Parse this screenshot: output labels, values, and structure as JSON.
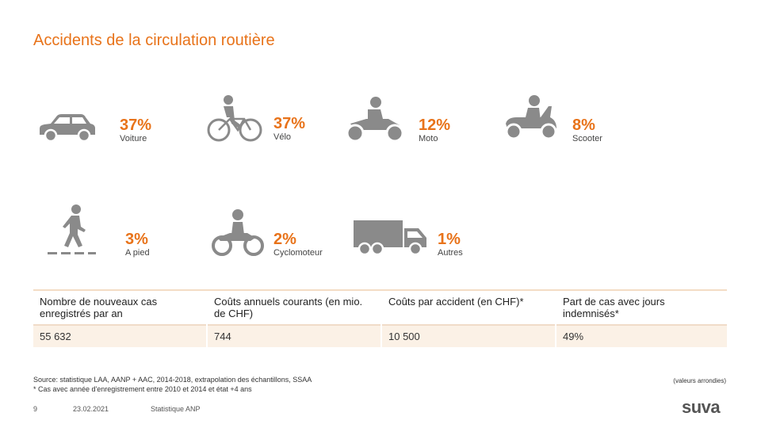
{
  "slide": {
    "title": "Accidents de la circulation routière"
  },
  "categories": [
    {
      "id": "voiture",
      "percent": "37%",
      "label": "Voiture",
      "icon": "car-icon"
    },
    {
      "id": "velo",
      "percent": "37%",
      "label": "Vélo",
      "icon": "bicycle-icon"
    },
    {
      "id": "moto",
      "percent": "12%",
      "label": "Moto",
      "icon": "motorcycle-icon"
    },
    {
      "id": "scooter",
      "percent": "8%",
      "label": "Scooter",
      "icon": "scooter-icon"
    },
    {
      "id": "pied",
      "percent": "3%",
      "label": "A pied",
      "icon": "pedestrian-icon"
    },
    {
      "id": "cyclo",
      "percent": "2%",
      "label": "Cyclomoteur",
      "icon": "moped-icon"
    },
    {
      "id": "autres",
      "percent": "1%",
      "label": "Autres",
      "icon": "truck-icon"
    }
  ],
  "table": {
    "headers": [
      "Nombre de nouveaux cas enregistrés par an",
      "Coûts annuels courants (en mio. de CHF)",
      "Coûts par accident (en CHF)*",
      "Part de cas avec jours indemnisés*"
    ],
    "values": [
      "55 632",
      "744",
      "10 500",
      "49%"
    ]
  },
  "footer": {
    "source": "Source: statistique LAA, AANP + AAC, 2014-2018, extrapolation des échantillons, SSAA",
    "note": "* Cas avec année d'enregistrement entre 2010 et 2014 et état +4 ans",
    "rounded": "(valeurs arrondies)",
    "page_number": "9",
    "date": "23.02.2021",
    "section": "Statistique ANP",
    "logo_text": "suva"
  },
  "colors": {
    "accent": "#e8731a",
    "icon_gray": "#8a8a8a",
    "table_fill": "#fbf1e6"
  }
}
